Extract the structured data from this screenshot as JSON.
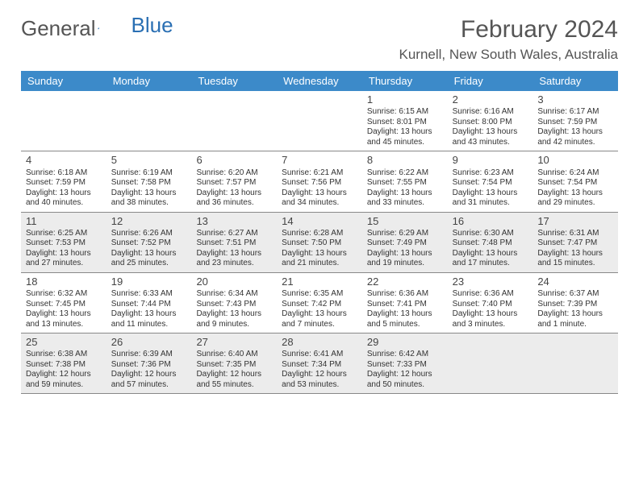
{
  "logo": {
    "text1": "General",
    "text2": "Blue"
  },
  "title": "February 2024",
  "location": "Kurnell, New South Wales, Australia",
  "colors": {
    "header_bg": "#3c8ac9",
    "shade_bg": "#ececec",
    "border": "#888888",
    "text": "#333333",
    "title_text": "#555555",
    "logo_blue": "#2a6fb3"
  },
  "day_labels": [
    "Sunday",
    "Monday",
    "Tuesday",
    "Wednesday",
    "Thursday",
    "Friday",
    "Saturday"
  ],
  "weeks": [
    {
      "shaded": false,
      "days": [
        null,
        null,
        null,
        null,
        {
          "n": "1",
          "sr": "Sunrise: 6:15 AM",
          "ss": "Sunset: 8:01 PM",
          "d1": "Daylight: 13 hours",
          "d2": "and 45 minutes."
        },
        {
          "n": "2",
          "sr": "Sunrise: 6:16 AM",
          "ss": "Sunset: 8:00 PM",
          "d1": "Daylight: 13 hours",
          "d2": "and 43 minutes."
        },
        {
          "n": "3",
          "sr": "Sunrise: 6:17 AM",
          "ss": "Sunset: 7:59 PM",
          "d1": "Daylight: 13 hours",
          "d2": "and 42 minutes."
        }
      ]
    },
    {
      "shaded": false,
      "days": [
        {
          "n": "4",
          "sr": "Sunrise: 6:18 AM",
          "ss": "Sunset: 7:59 PM",
          "d1": "Daylight: 13 hours",
          "d2": "and 40 minutes."
        },
        {
          "n": "5",
          "sr": "Sunrise: 6:19 AM",
          "ss": "Sunset: 7:58 PM",
          "d1": "Daylight: 13 hours",
          "d2": "and 38 minutes."
        },
        {
          "n": "6",
          "sr": "Sunrise: 6:20 AM",
          "ss": "Sunset: 7:57 PM",
          "d1": "Daylight: 13 hours",
          "d2": "and 36 minutes."
        },
        {
          "n": "7",
          "sr": "Sunrise: 6:21 AM",
          "ss": "Sunset: 7:56 PM",
          "d1": "Daylight: 13 hours",
          "d2": "and 34 minutes."
        },
        {
          "n": "8",
          "sr": "Sunrise: 6:22 AM",
          "ss": "Sunset: 7:55 PM",
          "d1": "Daylight: 13 hours",
          "d2": "and 33 minutes."
        },
        {
          "n": "9",
          "sr": "Sunrise: 6:23 AM",
          "ss": "Sunset: 7:54 PM",
          "d1": "Daylight: 13 hours",
          "d2": "and 31 minutes."
        },
        {
          "n": "10",
          "sr": "Sunrise: 6:24 AM",
          "ss": "Sunset: 7:54 PM",
          "d1": "Daylight: 13 hours",
          "d2": "and 29 minutes."
        }
      ]
    },
    {
      "shaded": true,
      "days": [
        {
          "n": "11",
          "sr": "Sunrise: 6:25 AM",
          "ss": "Sunset: 7:53 PM",
          "d1": "Daylight: 13 hours",
          "d2": "and 27 minutes."
        },
        {
          "n": "12",
          "sr": "Sunrise: 6:26 AM",
          "ss": "Sunset: 7:52 PM",
          "d1": "Daylight: 13 hours",
          "d2": "and 25 minutes."
        },
        {
          "n": "13",
          "sr": "Sunrise: 6:27 AM",
          "ss": "Sunset: 7:51 PM",
          "d1": "Daylight: 13 hours",
          "d2": "and 23 minutes."
        },
        {
          "n": "14",
          "sr": "Sunrise: 6:28 AM",
          "ss": "Sunset: 7:50 PM",
          "d1": "Daylight: 13 hours",
          "d2": "and 21 minutes."
        },
        {
          "n": "15",
          "sr": "Sunrise: 6:29 AM",
          "ss": "Sunset: 7:49 PM",
          "d1": "Daylight: 13 hours",
          "d2": "and 19 minutes."
        },
        {
          "n": "16",
          "sr": "Sunrise: 6:30 AM",
          "ss": "Sunset: 7:48 PM",
          "d1": "Daylight: 13 hours",
          "d2": "and 17 minutes."
        },
        {
          "n": "17",
          "sr": "Sunrise: 6:31 AM",
          "ss": "Sunset: 7:47 PM",
          "d1": "Daylight: 13 hours",
          "d2": "and 15 minutes."
        }
      ]
    },
    {
      "shaded": false,
      "days": [
        {
          "n": "18",
          "sr": "Sunrise: 6:32 AM",
          "ss": "Sunset: 7:45 PM",
          "d1": "Daylight: 13 hours",
          "d2": "and 13 minutes."
        },
        {
          "n": "19",
          "sr": "Sunrise: 6:33 AM",
          "ss": "Sunset: 7:44 PM",
          "d1": "Daylight: 13 hours",
          "d2": "and 11 minutes."
        },
        {
          "n": "20",
          "sr": "Sunrise: 6:34 AM",
          "ss": "Sunset: 7:43 PM",
          "d1": "Daylight: 13 hours",
          "d2": "and 9 minutes."
        },
        {
          "n": "21",
          "sr": "Sunrise: 6:35 AM",
          "ss": "Sunset: 7:42 PM",
          "d1": "Daylight: 13 hours",
          "d2": "and 7 minutes."
        },
        {
          "n": "22",
          "sr": "Sunrise: 6:36 AM",
          "ss": "Sunset: 7:41 PM",
          "d1": "Daylight: 13 hours",
          "d2": "and 5 minutes."
        },
        {
          "n": "23",
          "sr": "Sunrise: 6:36 AM",
          "ss": "Sunset: 7:40 PM",
          "d1": "Daylight: 13 hours",
          "d2": "and 3 minutes."
        },
        {
          "n": "24",
          "sr": "Sunrise: 6:37 AM",
          "ss": "Sunset: 7:39 PM",
          "d1": "Daylight: 13 hours",
          "d2": "and 1 minute."
        }
      ]
    },
    {
      "shaded": true,
      "days": [
        {
          "n": "25",
          "sr": "Sunrise: 6:38 AM",
          "ss": "Sunset: 7:38 PM",
          "d1": "Daylight: 12 hours",
          "d2": "and 59 minutes."
        },
        {
          "n": "26",
          "sr": "Sunrise: 6:39 AM",
          "ss": "Sunset: 7:36 PM",
          "d1": "Daylight: 12 hours",
          "d2": "and 57 minutes."
        },
        {
          "n": "27",
          "sr": "Sunrise: 6:40 AM",
          "ss": "Sunset: 7:35 PM",
          "d1": "Daylight: 12 hours",
          "d2": "and 55 minutes."
        },
        {
          "n": "28",
          "sr": "Sunrise: 6:41 AM",
          "ss": "Sunset: 7:34 PM",
          "d1": "Daylight: 12 hours",
          "d2": "and 53 minutes."
        },
        {
          "n": "29",
          "sr": "Sunrise: 6:42 AM",
          "ss": "Sunset: 7:33 PM",
          "d1": "Daylight: 12 hours",
          "d2": "and 50 minutes."
        },
        null,
        null
      ]
    }
  ]
}
